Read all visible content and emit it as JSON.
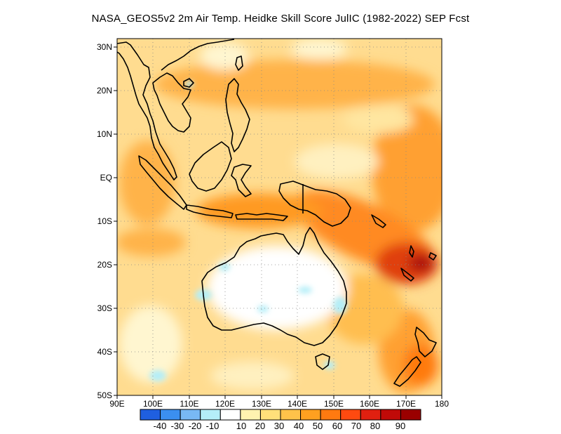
{
  "title": "NASA_GEOS5v2  2m Air Temp. Heidke Skill Score JulIC (1982-2022) SEP Fcst",
  "axes": {
    "lat_labels": [
      "30N",
      "20N",
      "10N",
      "EQ",
      "10S",
      "20S",
      "30S",
      "40S",
      "50S"
    ],
    "lon_labels": [
      "90E",
      "100E",
      "110E",
      "120E",
      "130E",
      "140E",
      "150E",
      "160E",
      "170E",
      "180"
    ]
  },
  "colorbar": {
    "labels": [
      "-40",
      "-30",
      "-20",
      "-10",
      "10",
      "20",
      "30",
      "40",
      "50",
      "60",
      "70",
      "80",
      "90"
    ],
    "colors": [
      "#1f5fe0",
      "#3b8ff0",
      "#78b8f4",
      "#b4eef8",
      "#ffffff",
      "#fff3b0",
      "#ffe07a",
      "#ffc24a",
      "#ffa020",
      "#ff7a10",
      "#ff4a10",
      "#e02010",
      "#c00a08",
      "#9a0000"
    ]
  },
  "map": {
    "lon_range": [
      90,
      180
    ],
    "lat_range": [
      -50,
      32
    ],
    "grid": "dotted",
    "background_color": "#ffe8a0"
  }
}
